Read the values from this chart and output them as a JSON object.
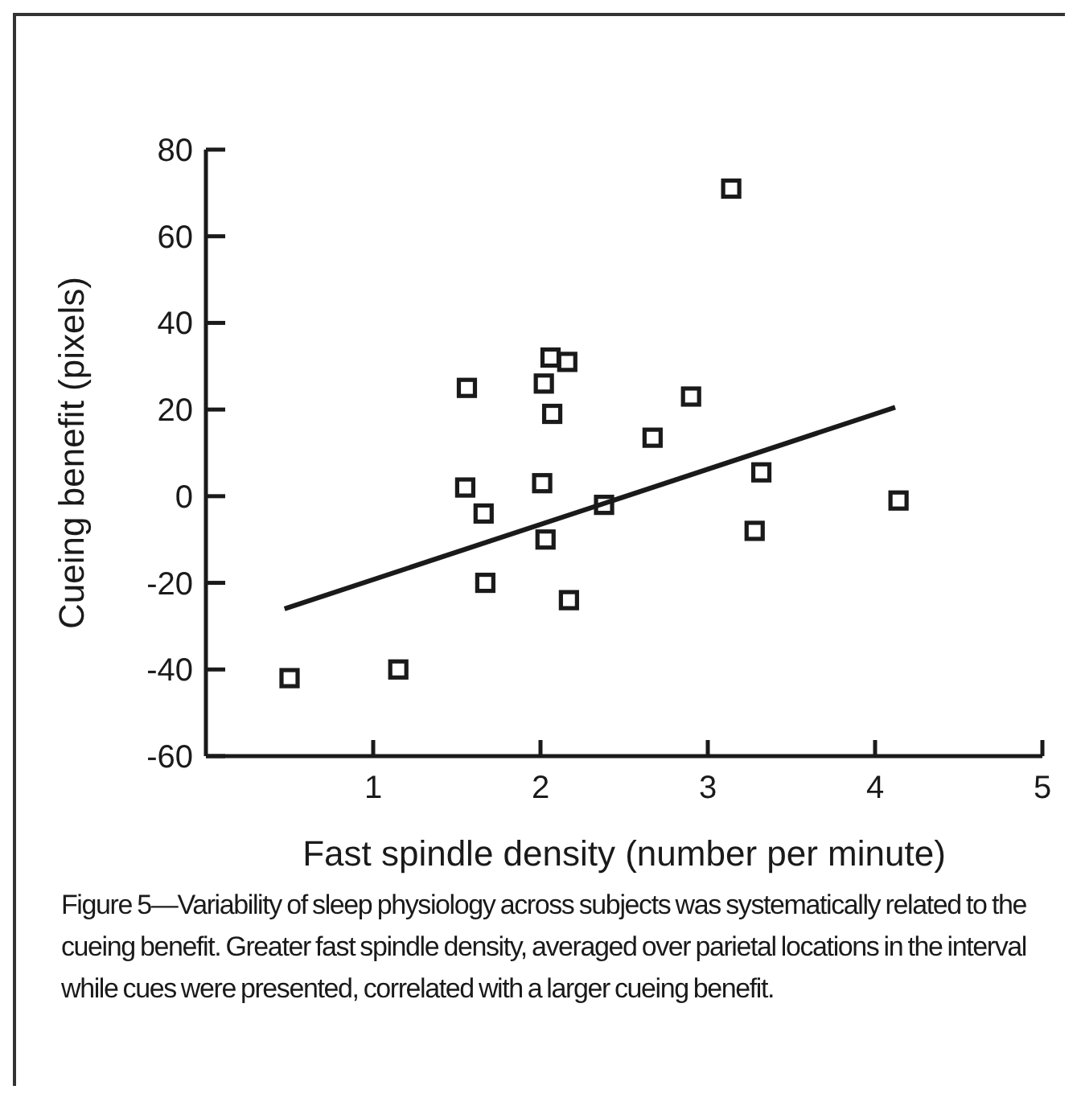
{
  "chart_data": {
    "type": "scatter",
    "xlabel": "Fast spindle density (number per minute)",
    "ylabel": "Cueing benefit (pixels)",
    "xlim": [
      0,
      5
    ],
    "xticks": [
      1,
      2,
      3,
      4,
      5
    ],
    "ylim": [
      -60,
      80
    ],
    "yticks": [
      -60,
      -40,
      -20,
      0,
      20,
      40,
      60,
      80
    ],
    "grid": false,
    "marker": "square",
    "series": [
      {
        "color": "#1a1a1a",
        "x": [
          3.14,
          1.56,
          2.06,
          2.16,
          2.02,
          2.9,
          2.07,
          2.67,
          3.32,
          1.55,
          2.01,
          1.66,
          2.38,
          3.28,
          4.14,
          2.03,
          1.67,
          2.17,
          1.15,
          0.5
        ],
        "values": [
          71,
          25,
          32,
          31,
          26,
          23,
          19,
          13.5,
          5.5,
          2,
          3,
          -4,
          -2,
          -8,
          -1,
          -10,
          -20,
          -24,
          -40,
          -42
        ]
      },
      {
        "type": "line",
        "color": "#1a1a1a",
        "marker": "none",
        "x": [
          0.47,
          4.12
        ],
        "values": [
          -26,
          20.5
        ]
      }
    ],
    "annotations": [
      "Figure 5—Variability of sleep physiology across subjects was systematically related to the cueing benefit. Greater fast spindle density, averaged over parietal locations in the interval while cues were presented, correlated with a larger cueing benefit."
    ]
  }
}
